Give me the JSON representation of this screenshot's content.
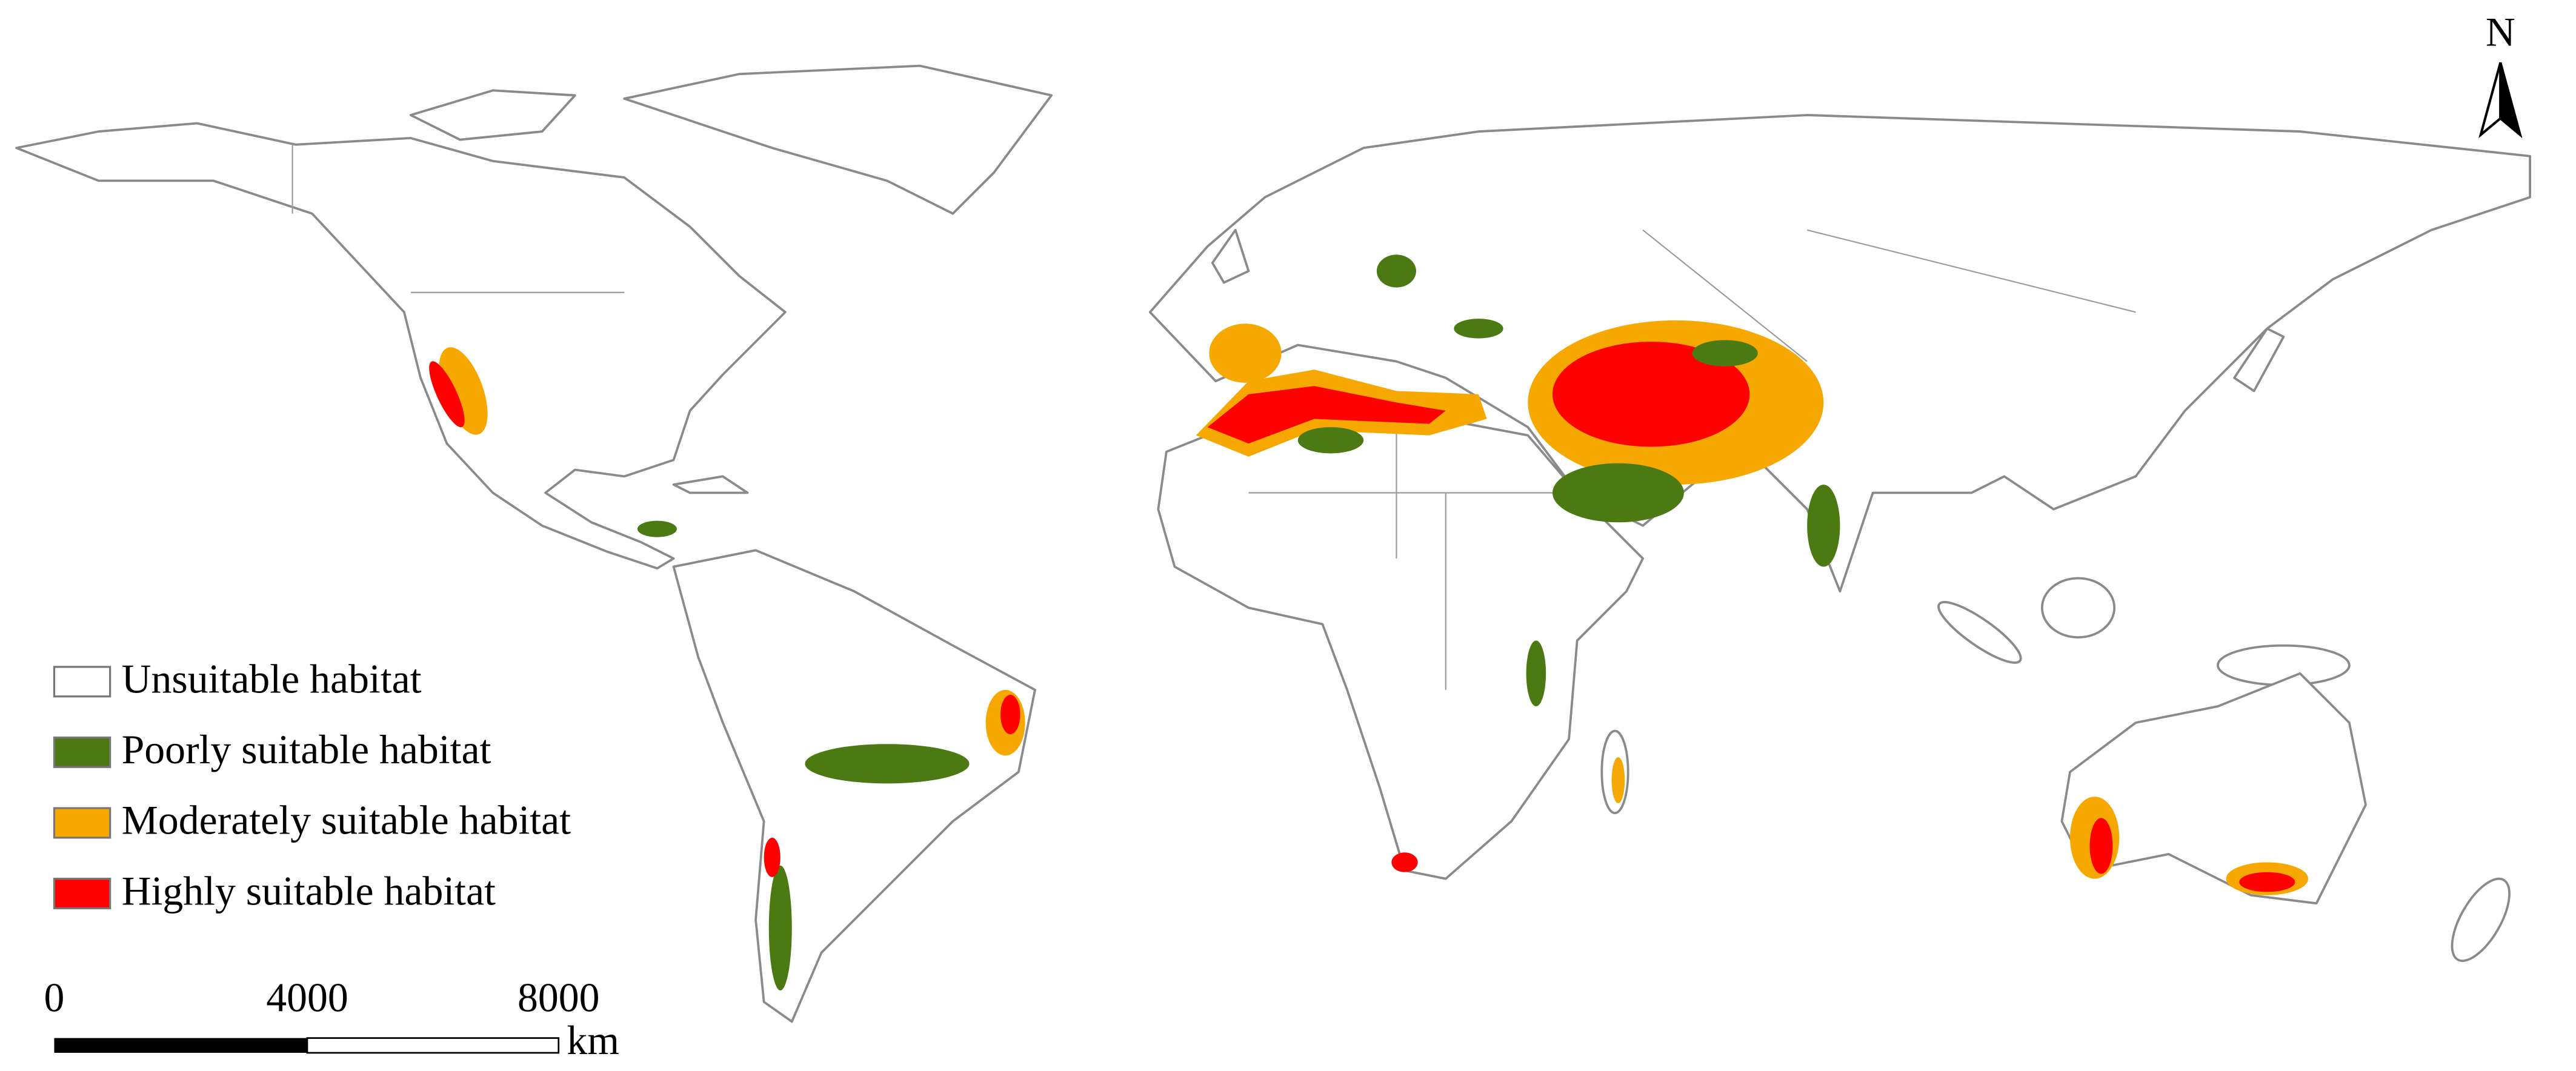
{
  "legend": {
    "items": [
      {
        "label": "Unsuitable habitat",
        "color": "#ffffff"
      },
      {
        "label": "Poorly suitable habitat",
        "color": "#4c7a12"
      },
      {
        "label": "Moderately suitable habitat",
        "color": "#f7a800"
      },
      {
        "label": "Highly suitable habitat",
        "color": "#ff0000"
      }
    ]
  },
  "north_arrow": {
    "label": "N"
  },
  "scale_bar": {
    "ticks": [
      "0",
      "4000",
      "8000"
    ],
    "unit": "km"
  }
}
